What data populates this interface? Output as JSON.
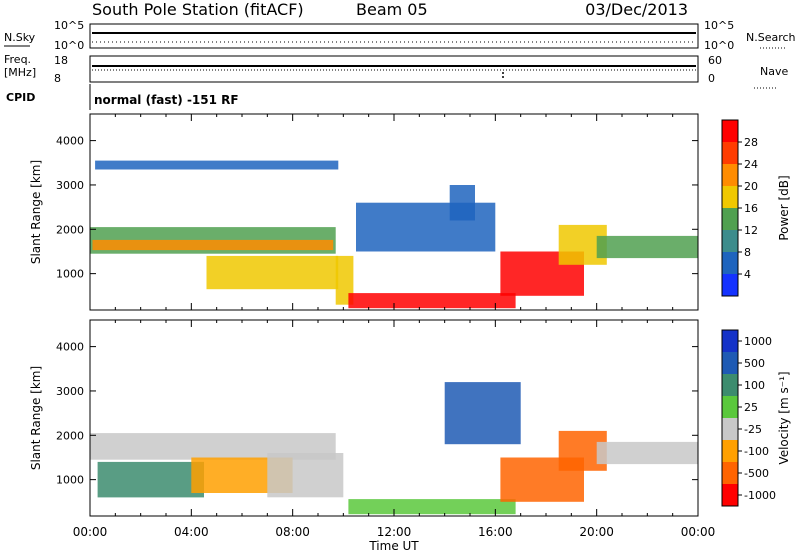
{
  "header": {
    "station": "South Pole Station (fitACF)",
    "beam": "Beam 05",
    "date": "03/Dec/2013"
  },
  "strip": {
    "nsky_label": "N.Sky",
    "nsky_hi": "10^5",
    "nsky_lo": "10^0",
    "nsearch_label": "N.Search",
    "nsearch_hi": "10^5",
    "nsearch_lo": "10^0",
    "freq_label_1": "Freq.",
    "freq_label_2": "[MHz]",
    "freq_hi": "18",
    "freq_lo": "8",
    "nave_label": "Nave",
    "nave_hi": "60",
    "nave_lo": "0",
    "cpid_label": "CPID",
    "cpid_value": "normal (fast) -151 RF"
  },
  "power_panel": {
    "ylabel": "Slant Range [km]",
    "cbar_label": "Power [dB]"
  },
  "velocity_panel": {
    "ylabel": "Slant Range [km]",
    "cbar_label": "Velocity [m s⁻¹]"
  },
  "x_axis": {
    "label": "Time UT"
  },
  "chart_data": [
    {
      "type": "heatmap",
      "title": "Power",
      "xlabel": "Time UT",
      "ylabel": "Slant Range [km]",
      "x_range_hours": [
        0,
        24
      ],
      "xlim": [
        "00:00",
        "00:00"
      ],
      "x_ticks": [
        "00:00",
        "04:00",
        "08:00",
        "12:00",
        "16:00",
        "20:00",
        "00:00"
      ],
      "ylim": [
        180,
        4600
      ],
      "y_ticks": [
        1000,
        2000,
        3000,
        4000
      ],
      "colorbar": {
        "label": "Power [dB]",
        "ticks": [
          "4",
          "8",
          "12",
          "16",
          "20",
          "24",
          "28"
        ],
        "range": [
          0,
          30
        ],
        "colors": [
          "#1432ff",
          "#1e64be",
          "#3c8c8c",
          "#50a050",
          "#f0c800",
          "#ff8c00",
          "#ff3c00",
          "#ff0000"
        ]
      },
      "regions": [
        {
          "t0": 0.0,
          "t1": 9.7,
          "r0": 1450,
          "r1": 2050,
          "level": 14
        },
        {
          "t0": 0.1,
          "t1": 9.6,
          "r0": 1530,
          "r1": 1760,
          "level": 20
        },
        {
          "t0": 4.6,
          "t1": 9.8,
          "r0": 650,
          "r1": 1400,
          "level": 18
        },
        {
          "t0": 0.2,
          "t1": 9.8,
          "r0": 3350,
          "r1": 3550,
          "level": 6
        },
        {
          "t0": 9.7,
          "t1": 10.4,
          "r0": 300,
          "r1": 1400,
          "level": 16
        },
        {
          "t0": 10.2,
          "t1": 16.8,
          "r0": 220,
          "r1": 560,
          "level": 29
        },
        {
          "t0": 16.2,
          "t1": 19.5,
          "r0": 500,
          "r1": 1500,
          "level": 27
        },
        {
          "t0": 18.5,
          "t1": 20.4,
          "r0": 1200,
          "r1": 2100,
          "level": 17
        },
        {
          "t0": 20.0,
          "t1": 24.0,
          "r0": 1350,
          "r1": 1850,
          "level": 12
        },
        {
          "t0": 10.5,
          "t1": 16.0,
          "r0": 1500,
          "r1": 2600,
          "level": 6
        },
        {
          "t0": 14.2,
          "t1": 15.2,
          "r0": 2200,
          "r1": 3000,
          "level": 6
        }
      ]
    },
    {
      "type": "heatmap",
      "title": "Velocity",
      "xlabel": "Time UT",
      "ylabel": "Slant Range [km]",
      "x_range_hours": [
        0,
        24
      ],
      "xlim": [
        "00:00",
        "00:00"
      ],
      "x_ticks": [
        "00:00",
        "04:00",
        "08:00",
        "12:00",
        "16:00",
        "20:00",
        "00:00"
      ],
      "ylim": [
        180,
        4600
      ],
      "y_ticks": [
        1000,
        2000,
        3000,
        4000
      ],
      "colorbar": {
        "label": "Velocity [m s⁻¹]",
        "ticks": [
          "1000",
          "500",
          "100",
          "25",
          "-25",
          "-100",
          "-500",
          "-1000"
        ],
        "colors": [
          "#1432c8",
          "#1e5ab4",
          "#3c8c6e",
          "#5ac83c",
          "#c8c8c8",
          "#ffa000",
          "#ff6400",
          "#ff0000"
        ]
      },
      "regions": [
        {
          "t0": 0.0,
          "t1": 9.7,
          "r0": 1450,
          "r1": 2050,
          "class": "-25..25"
        },
        {
          "t0": 0.3,
          "t1": 4.5,
          "r0": 600,
          "r1": 1400,
          "class": "100..500"
        },
        {
          "t0": 4.0,
          "t1": 8.0,
          "r0": 700,
          "r1": 1500,
          "class": "-100..-25"
        },
        {
          "t0": 7.0,
          "t1": 10.0,
          "r0": 600,
          "r1": 1600,
          "class": "-25..25"
        },
        {
          "t0": 10.2,
          "t1": 16.8,
          "r0": 220,
          "r1": 560,
          "class": "25..100"
        },
        {
          "t0": 14.0,
          "t1": 17.0,
          "r0": 1800,
          "r1": 3200,
          "class": "500..1000"
        },
        {
          "t0": 16.2,
          "t1": 19.5,
          "r0": 500,
          "r1": 1500,
          "class": "-500..-100"
        },
        {
          "t0": 18.5,
          "t1": 20.4,
          "r0": 1200,
          "r1": 2100,
          "class": "-500..-100"
        },
        {
          "t0": 20.0,
          "t1": 24.0,
          "r0": 1350,
          "r1": 1850,
          "class": "-25..25"
        }
      ]
    }
  ]
}
